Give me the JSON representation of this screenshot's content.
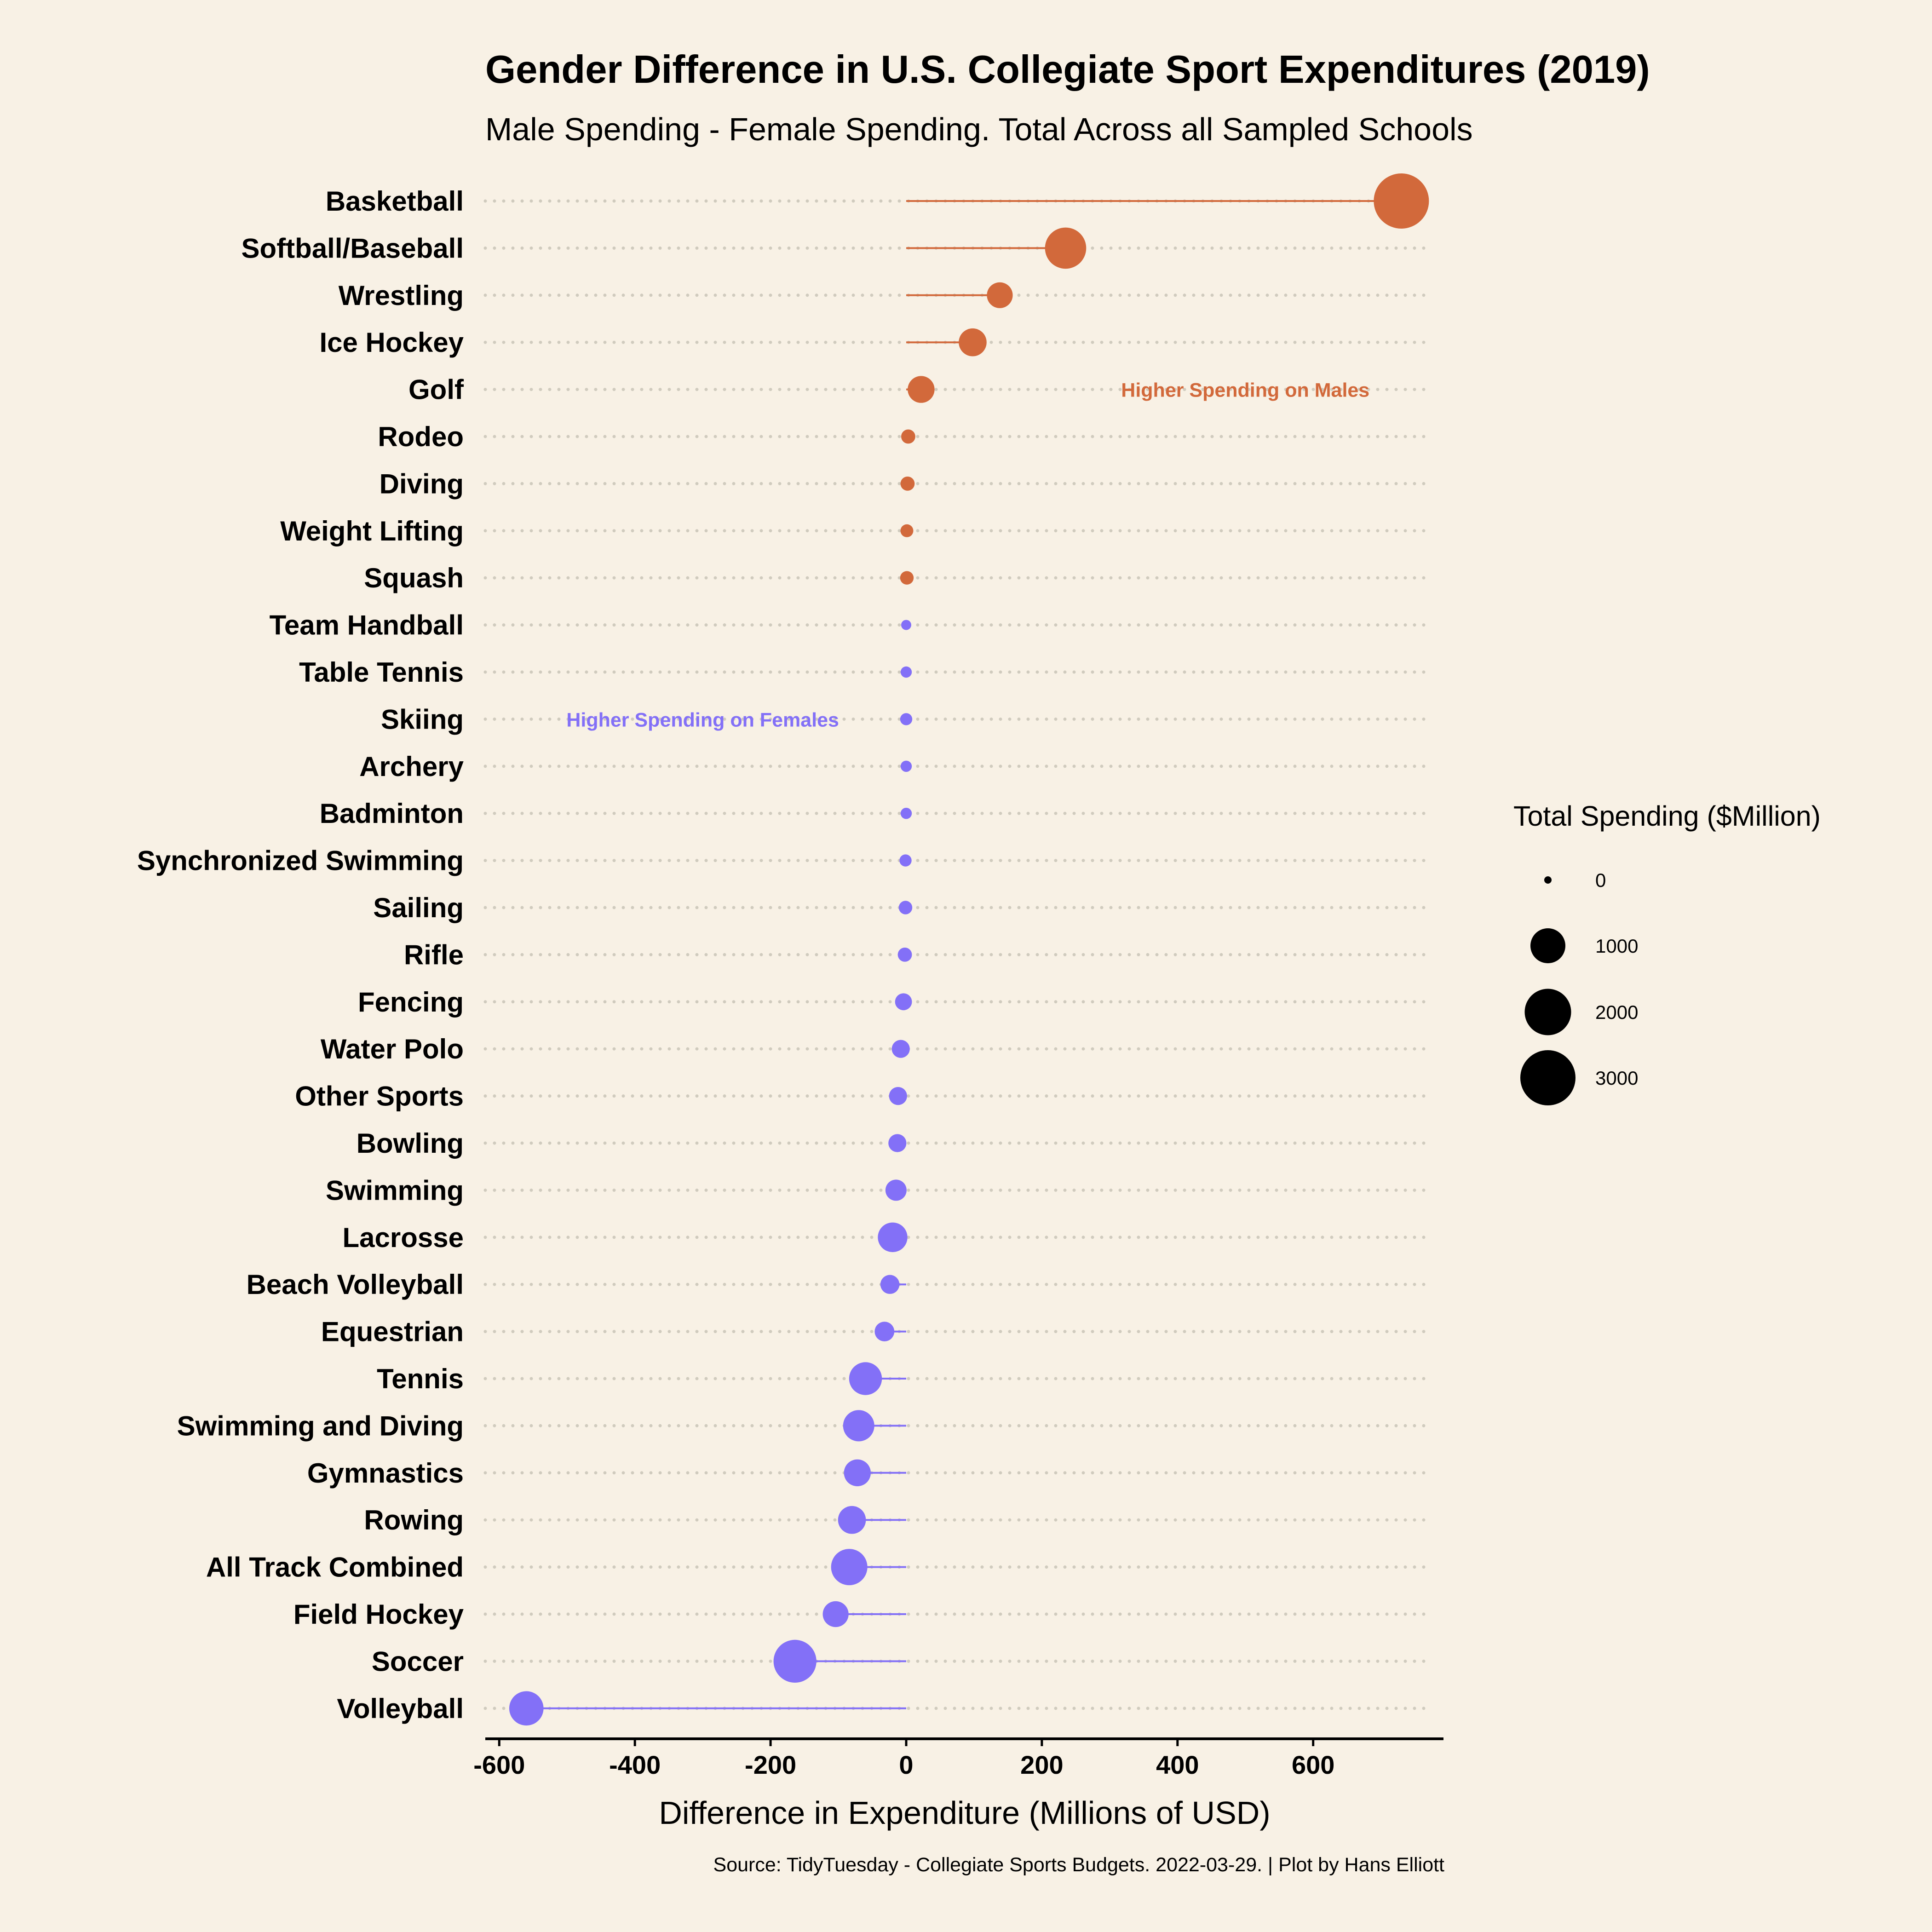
{
  "chart_data": {
    "type": "lollipop",
    "title": "Gender Difference in U.S. Collegiate Sport Expenditures (2019)",
    "subtitle": "Male Spending - Female Spending. Total Across all Sampled Schools",
    "xlabel": "Difference in Expenditure (Millions of USD)",
    "ylabel": "",
    "xlim": [
      -605,
      780
    ],
    "x_ticks": [
      -600,
      -400,
      -200,
      0,
      200,
      400,
      600
    ],
    "x_tick_labels": [
      "-600",
      "-400",
      "-200",
      "0",
      "200",
      "400",
      "600"
    ],
    "grid": "horizontal dotted",
    "caption": "Source: TidyTuesday - Collegiate Sports Budgets. 2022-03-29. | Plot by Hans Elliott",
    "colors": {
      "male_higher": "#D2693B",
      "female_higher": "#8370F7",
      "background": "#F8F1E5",
      "grid": "#D0CBBE"
    },
    "annotations": [
      {
        "text": "Higher Spending on Males",
        "x": 500,
        "category": "Golf",
        "color": "#D2693B"
      },
      {
        "text": "Higher Spending on Females",
        "x": -300,
        "category": "Skiing",
        "color": "#8370F7"
      }
    ],
    "legend": {
      "title": "Total Spending ($Million)",
      "position": "right",
      "sizes": [
        0,
        1000,
        2000,
        3000
      ],
      "labels": [
        "0",
        "1000",
        "2000",
        "3000"
      ]
    },
    "series": [
      {
        "categories": [
          "Basketball",
          "Softball/Baseball",
          "Wrestling",
          "Ice Hockey",
          "Golf",
          "Rodeo",
          "Diving",
          "Weight Lifting",
          "Squash",
          "Team Handball",
          "Table Tennis",
          "Skiing",
          "Archery",
          "Badminton",
          "Synchronized Swimming",
          "Sailing",
          "Rifle",
          "Fencing",
          "Water Polo",
          "Other Sports",
          "Bowling",
          "Swimming",
          "Lacrosse",
          "Beach Volleyball",
          "Equestrian",
          "Tennis",
          "Swimming and Diving",
          "Gymnastics",
          "Rowing",
          "All Track Combined",
          "Field Hockey",
          "Soccer",
          "Volleyball"
        ],
        "values": [
          730,
          235,
          138,
          98,
          22,
          3,
          2,
          1,
          1,
          0,
          0,
          0,
          0,
          0,
          -1,
          -1,
          -2,
          -4,
          -8,
          -12,
          -13,
          -15,
          -20,
          -24,
          -32,
          -60,
          -70,
          -72,
          -80,
          -84,
          -104,
          -164,
          -560
        ],
        "total_spending": [
          3000,
          1500,
          450,
          550,
          500,
          60,
          60,
          40,
          50,
          10,
          20,
          30,
          20,
          20,
          30,
          50,
          60,
          120,
          150,
          150,
          150,
          250,
          650,
          180,
          200,
          850,
          750,
          500,
          550,
          1100,
          450,
          1650,
          950
        ]
      }
    ]
  }
}
